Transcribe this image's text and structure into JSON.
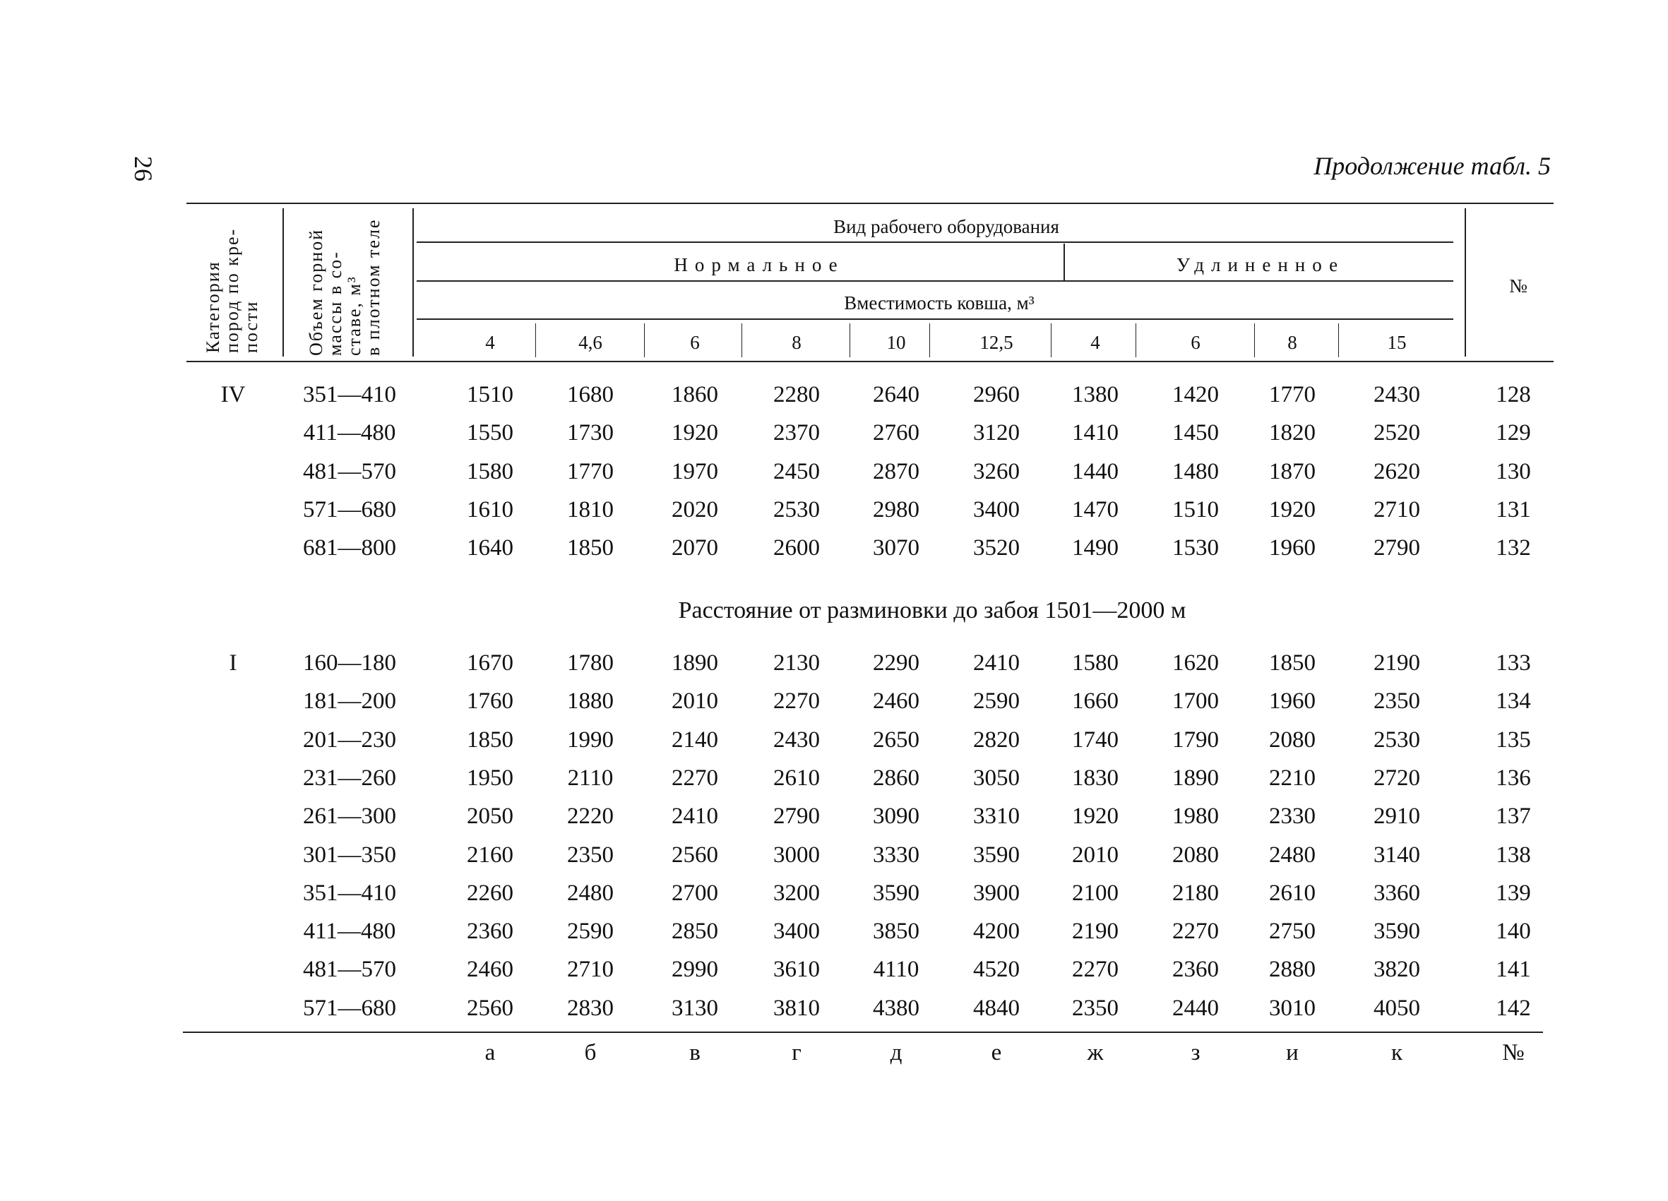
{
  "page_number": "26",
  "title": "Продолжение табл. 5",
  "header": {
    "col_category": [
      "Категория",
      "пород по кре-",
      "пости"
    ],
    "col_volume": [
      "Объем горной",
      "массы в со-",
      "ставе, м³",
      "в плотном теле"
    ],
    "equipment_type": "Вид рабочего оборудования",
    "normal": "Нормальное",
    "extended": "Удлиненное",
    "bucket_capacity": "Вместимость ковша, м³",
    "capacities": [
      "4",
      "4,6",
      "6",
      "8",
      "10",
      "12,5",
      "4",
      "6",
      "8",
      "15"
    ],
    "number": "№"
  },
  "groups": [
    {
      "category": "IV",
      "rows": [
        {
          "range": "351—410",
          "values": [
            "1510",
            "1680",
            "1860",
            "2280",
            "2640",
            "2960",
            "1380",
            "1420",
            "1770",
            "2430"
          ],
          "no": "128"
        },
        {
          "range": "411—480",
          "values": [
            "1550",
            "1730",
            "1920",
            "2370",
            "2760",
            "3120",
            "1410",
            "1450",
            "1820",
            "2520"
          ],
          "no": "129"
        },
        {
          "range": "481—570",
          "values": [
            "1580",
            "1770",
            "1970",
            "2450",
            "2870",
            "3260",
            "1440",
            "1480",
            "1870",
            "2620"
          ],
          "no": "130"
        },
        {
          "range": "571—680",
          "values": [
            "1610",
            "1810",
            "2020",
            "2530",
            "2980",
            "3400",
            "1470",
            "1510",
            "1920",
            "2710"
          ],
          "no": "131"
        },
        {
          "range": "681—800",
          "values": [
            "1640",
            "1850",
            "2070",
            "2600",
            "3070",
            "3520",
            "1490",
            "1530",
            "1960",
            "2790"
          ],
          "no": "132"
        }
      ]
    },
    {
      "section_title": "Расстояние от разминовки до забоя 1501—2000 м",
      "category": "I",
      "rows": [
        {
          "range": "160—180",
          "values": [
            "1670",
            "1780",
            "1890",
            "2130",
            "2290",
            "2410",
            "1580",
            "1620",
            "1850",
            "2190"
          ],
          "no": "133"
        },
        {
          "range": "181—200",
          "values": [
            "1760",
            "1880",
            "2010",
            "2270",
            "2460",
            "2590",
            "1660",
            "1700",
            "1960",
            "2350"
          ],
          "no": "134"
        },
        {
          "range": "201—230",
          "values": [
            "1850",
            "1990",
            "2140",
            "2430",
            "2650",
            "2820",
            "1740",
            "1790",
            "2080",
            "2530"
          ],
          "no": "135"
        },
        {
          "range": "231—260",
          "values": [
            "1950",
            "2110",
            "2270",
            "2610",
            "2860",
            "3050",
            "1830",
            "1890",
            "2210",
            "2720"
          ],
          "no": "136"
        },
        {
          "range": "261—300",
          "values": [
            "2050",
            "2220",
            "2410",
            "2790",
            "3090",
            "3310",
            "1920",
            "1980",
            "2330",
            "2910"
          ],
          "no": "137"
        },
        {
          "range": "301—350",
          "values": [
            "2160",
            "2350",
            "2560",
            "3000",
            "3330",
            "3590",
            "2010",
            "2080",
            "2480",
            "3140"
          ],
          "no": "138"
        },
        {
          "range": "351—410",
          "values": [
            "2260",
            "2480",
            "2700",
            "3200",
            "3590",
            "3900",
            "2100",
            "2180",
            "2610",
            "3360"
          ],
          "no": "139"
        },
        {
          "range": "411—480",
          "values": [
            "2360",
            "2590",
            "2850",
            "3400",
            "3850",
            "4200",
            "2190",
            "2270",
            "2750",
            "3590"
          ],
          "no": "140"
        },
        {
          "range": "481—570",
          "values": [
            "2460",
            "2710",
            "2990",
            "3610",
            "4110",
            "4520",
            "2270",
            "2360",
            "2880",
            "3820"
          ],
          "no": "141"
        },
        {
          "range": "571—680",
          "values": [
            "2560",
            "2830",
            "3130",
            "3810",
            "4380",
            "4840",
            "2350",
            "2440",
            "3010",
            "4050"
          ],
          "no": "142"
        }
      ]
    }
  ],
  "footer_letters": [
    "а",
    "б",
    "в",
    "г",
    "д",
    "е",
    "ж",
    "з",
    "и",
    "к",
    "№"
  ]
}
